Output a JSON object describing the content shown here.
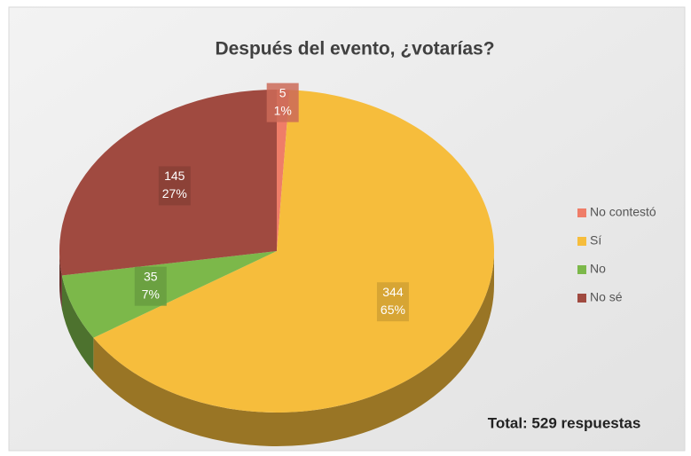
{
  "chart_data": {
    "type": "pie",
    "title": "Después del evento, ¿votarías?",
    "categories": [
      "No contestó",
      "Sí",
      "No",
      "No sé"
    ],
    "values": [
      5,
      344,
      35,
      145
    ],
    "percent_labels": [
      "1%",
      "65%",
      "7%",
      "27%"
    ],
    "colors": [
      "#ef7d68",
      "#f6bd3c",
      "#7cb84a",
      "#a04a40"
    ],
    "legend": "right",
    "annotation": "Total: 529 respuestas"
  }
}
